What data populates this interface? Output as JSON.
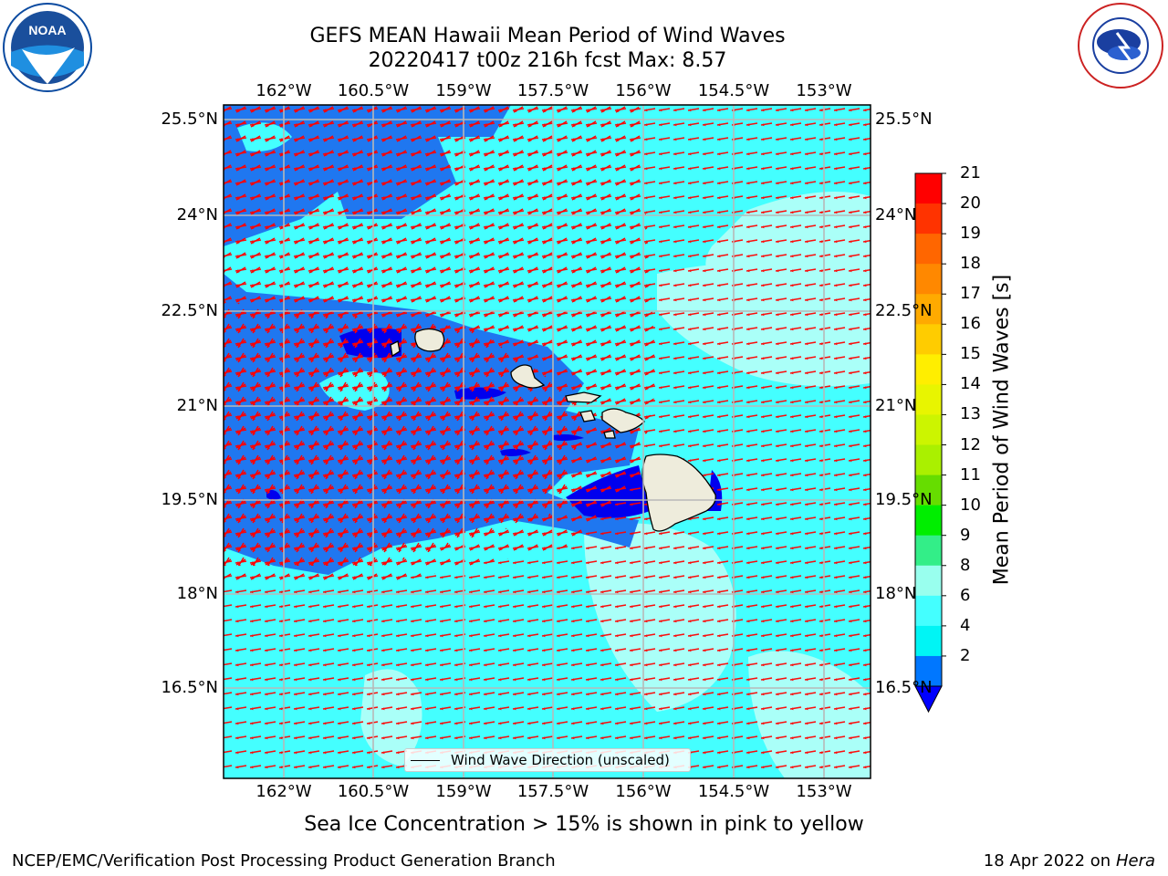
{
  "title_line1": "GEFS MEAN Hawaii Mean Period of Wind Waves",
  "title_line2": "20220417 t00z 216h fcst   Max: 8.57",
  "lon_labels": [
    "162°W",
    "160.5°W",
    "159°W",
    "157.5°W",
    "156°W",
    "154.5°W",
    "153°W"
  ],
  "lat_labels": [
    "25.5°N",
    "24°N",
    "22.5°N",
    "21°N",
    "19.5°N",
    "18°N",
    "16.5°N"
  ],
  "colorbar": {
    "title": "Mean Period of Wind Waves [s]",
    "ticks": [
      "21",
      "20",
      "19",
      "18",
      "17",
      "16",
      "15",
      "14",
      "13",
      "12",
      "11",
      "10",
      "9",
      "8",
      "6",
      "4",
      "2"
    ],
    "colors": [
      "#ff0000",
      "#ff3300",
      "#ff6600",
      "#ff8800",
      "#ffaa00",
      "#ffcc00",
      "#ffee00",
      "#e8f500",
      "#ccf500",
      "#aaf000",
      "#66dd00",
      "#00ee00",
      "#33ee88",
      "#99ffee",
      "#44ffff",
      "#00f5f5",
      "#0077ff"
    ],
    "under_color": "#0000ff"
  },
  "legend_label": "Wind Wave Direction (unscaled)",
  "caption": "Sea Ice Concentration > 15% is shown in pink to yellow",
  "footer_left": "NCEP/EMC/Verification Post Processing Product Generation Branch",
  "footer_right_date": "18 Apr 2022 on ",
  "footer_right_host": "Hera",
  "logos": {
    "left": "noaa-logo",
    "right": "nws-logo"
  },
  "colors": {
    "land": "#eeecdc",
    "arrow": "#ff0000",
    "sea_dark": "#1f77f0",
    "sea_light": "#44ffff",
    "sea_pale": "#aafff8"
  }
}
